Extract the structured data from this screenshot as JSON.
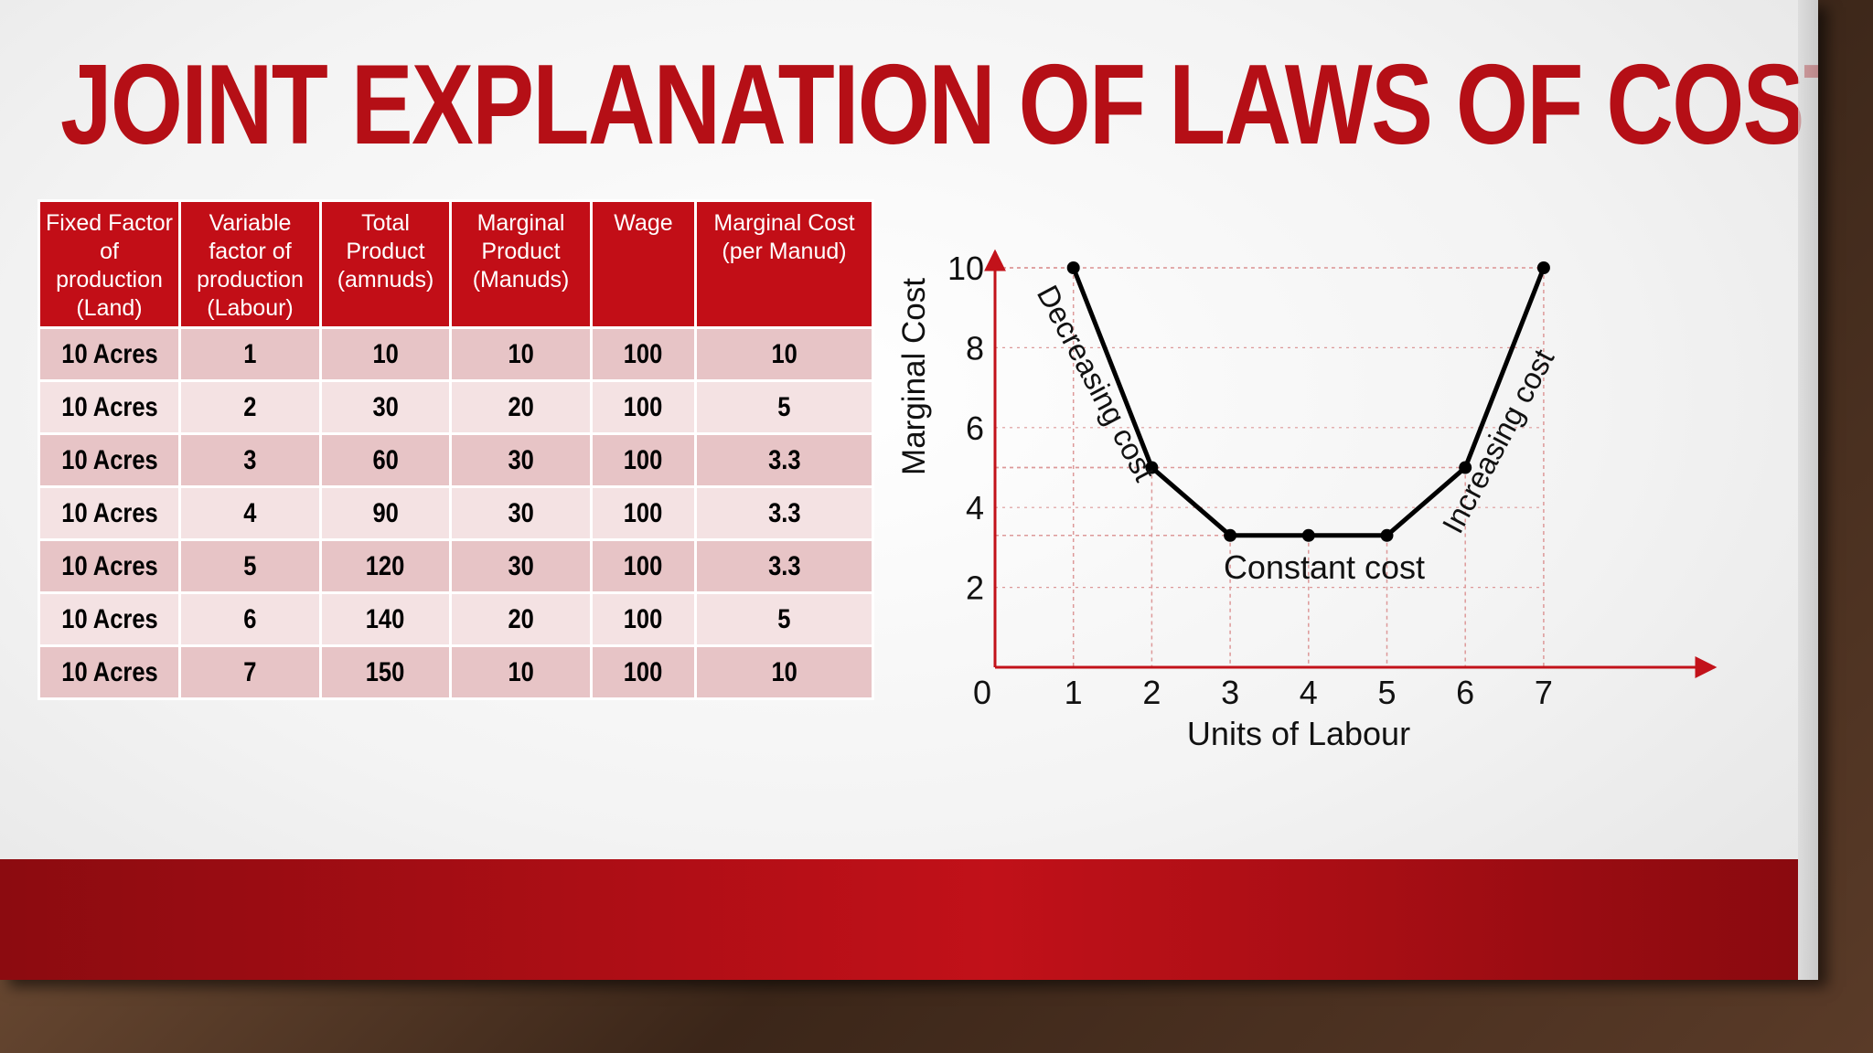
{
  "slide": {
    "title": "JOINT EXPLANATION OF LAWS OF COST",
    "colors": {
      "accent": "#c20e17",
      "row_dark": "#e7c4c6",
      "row_light": "#f4e2e3"
    }
  },
  "table": {
    "headers": [
      "Fixed Factor of production (Land)",
      "Variable factor of production (Labour)",
      "Total Product (amnuds)",
      "Marginal Product (Manuds)",
      "Wage",
      "Marginal Cost (per Manud)"
    ],
    "rows": [
      [
        "10 Acres",
        "1",
        "10",
        "10",
        "100",
        "10"
      ],
      [
        "10 Acres",
        "2",
        "30",
        "20",
        "100",
        "5"
      ],
      [
        "10 Acres",
        "3",
        "60",
        "30",
        "100",
        "3.3"
      ],
      [
        "10 Acres",
        "4",
        "90",
        "30",
        "100",
        "3.3"
      ],
      [
        "10 Acres",
        "5",
        "120",
        "30",
        "100",
        "3.3"
      ],
      [
        "10 Acres",
        "6",
        "140",
        "20",
        "100",
        "5"
      ],
      [
        "10 Acres",
        "7",
        "150",
        "10",
        "100",
        "10"
      ]
    ]
  },
  "chart_data": {
    "type": "line",
    "title": "",
    "xlabel": "Units of Labour",
    "ylabel": "Marginal Cost",
    "x": [
      1,
      2,
      3,
      4,
      5,
      6,
      7
    ],
    "series": [
      {
        "values": [
          10,
          5,
          3.3,
          3.3,
          3.3,
          5,
          10
        ]
      }
    ],
    "x_ticks": [
      "0",
      "1",
      "2",
      "3",
      "4",
      "5",
      "6",
      "7"
    ],
    "y_ticks": [
      "2",
      "4",
      "6",
      "8",
      "10"
    ],
    "xlim": [
      0,
      9
    ],
    "ylim": [
      0,
      10.5
    ],
    "grid": "dashed guide lines at each point",
    "annotations": [
      "Decreasing cost",
      "Constant cost",
      "Increasing cost"
    ]
  }
}
